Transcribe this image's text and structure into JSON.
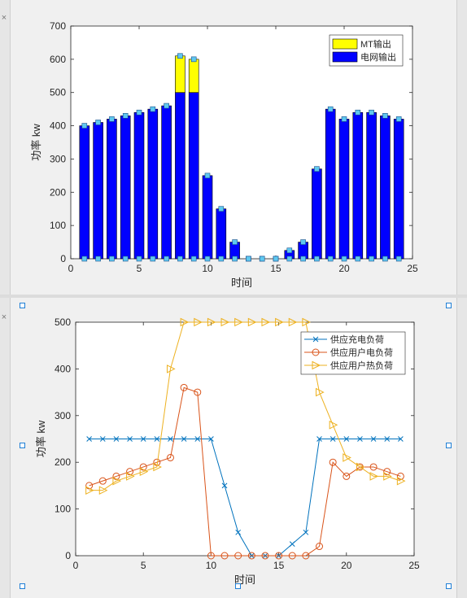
{
  "ui": {
    "close_glyph_top": "×",
    "close_glyph_bottom": "×",
    "bar_fill_colors": {
      "mt": "#ffff00",
      "grid": "#0000ff"
    },
    "line_colors": [
      "#0072bd",
      "#d95319",
      "#edb120"
    ]
  },
  "chart_data": [
    {
      "type": "bar",
      "stacked": true,
      "x": [
        1,
        2,
        3,
        4,
        5,
        6,
        7,
        8,
        9,
        10,
        11,
        12,
        13,
        14,
        15,
        16,
        17,
        18,
        19,
        20,
        21,
        22,
        23,
        24
      ],
      "series": [
        {
          "name": "电网输出",
          "color": "#0000ff",
          "values": [
            400,
            410,
            420,
            430,
            440,
            450,
            460,
            500,
            500,
            250,
            150,
            50,
            0,
            0,
            0,
            25,
            50,
            270,
            450,
            420,
            440,
            440,
            430,
            420
          ]
        },
        {
          "name": "MT输出",
          "color": "#ffff00",
          "values": [
            0,
            0,
            0,
            0,
            0,
            0,
            0,
            110,
            100,
            0,
            0,
            0,
            0,
            0,
            0,
            0,
            0,
            0,
            0,
            0,
            0,
            0,
            0,
            0
          ]
        }
      ],
      "xlabel": "时间",
      "ylabel": "功率 kw",
      "xlim": [
        0,
        25
      ],
      "ylim": [
        0,
        700
      ],
      "xticks": [
        0,
        5,
        10,
        15,
        20,
        25
      ],
      "yticks": [
        0,
        100,
        200,
        300,
        400,
        500,
        600,
        700
      ],
      "legend_entries": [
        "MT输出",
        "电网输出"
      ],
      "legend_position": "top-right",
      "grid": false
    },
    {
      "type": "line",
      "x": [
        1,
        2,
        3,
        4,
        5,
        6,
        7,
        8,
        9,
        10,
        11,
        12,
        13,
        14,
        15,
        16,
        17,
        18,
        19,
        20,
        21,
        22,
        23,
        24
      ],
      "series": [
        {
          "name": "供应充电负荷",
          "color": "#0072bd",
          "marker": "x",
          "values": [
            250,
            250,
            250,
            250,
            250,
            250,
            250,
            250,
            250,
            250,
            150,
            50,
            0,
            0,
            0,
            25,
            50,
            250,
            250,
            250,
            250,
            250,
            250,
            250
          ]
        },
        {
          "name": "供应用户电负荷",
          "color": "#d95319",
          "marker": "o",
          "values": [
            150,
            160,
            170,
            180,
            190,
            200,
            210,
            360,
            350,
            0,
            0,
            0,
            0,
            0,
            0,
            0,
            0,
            20,
            200,
            170,
            190,
            190,
            180,
            170
          ]
        },
        {
          "name": "供应用户热负荷",
          "color": "#edb120",
          "marker": "triangle-right",
          "values": [
            140,
            140,
            160,
            170,
            180,
            190,
            400,
            500,
            500,
            500,
            500,
            500,
            500,
            500,
            500,
            500,
            500,
            350,
            280,
            210,
            190,
            170,
            170,
            160
          ]
        }
      ],
      "xlabel": "时间",
      "ylabel": "功率 kw",
      "xlim": [
        0,
        25
      ],
      "ylim": [
        0,
        500
      ],
      "xticks": [
        0,
        5,
        10,
        15,
        20,
        25
      ],
      "yticks": [
        0,
        100,
        200,
        300,
        400,
        500
      ],
      "legend_entries": [
        "供应充电负荷",
        "供应用户电负荷",
        "供应用户热负荷"
      ],
      "legend_position": "top-right",
      "grid": false
    }
  ]
}
